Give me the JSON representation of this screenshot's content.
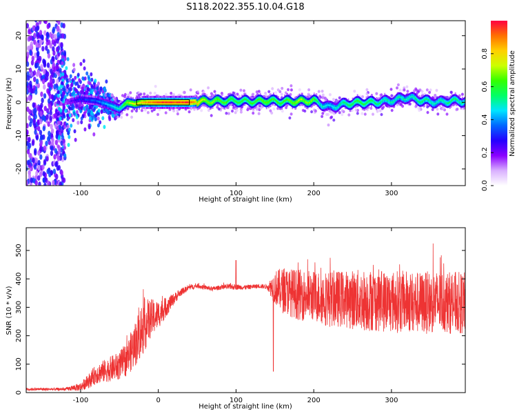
{
  "title": "S118.2022.355.10.04.G18",
  "chart_data": [
    {
      "type": "heatmap",
      "xlabel": "Height of straight line (km)",
      "ylabel": "Frequency (Hz)",
      "xlim": [
        -170,
        395
      ],
      "ylim": [
        -25,
        24.5
      ],
      "xticks": [
        -100,
        0,
        100,
        200,
        300
      ],
      "yticks": [
        -20,
        -10,
        0,
        10,
        20
      ],
      "colorbar": {
        "label": "Normalized spectral amplitude",
        "range": [
          0,
          1
        ],
        "ticks": [
          0.0,
          0.2,
          0.4,
          0.6,
          0.8
        ],
        "colors": [
          "#ffffff",
          "#d9b0ff",
          "#8a00ff",
          "#2400ff",
          "#0066ff",
          "#00e5ff",
          "#00ff66",
          "#33ff00",
          "#ccff00",
          "#ffd000",
          "#ff7000",
          "#ff0040"
        ]
      },
      "ridge": {
        "description_x": [
          -170,
          -120,
          -100,
          -80,
          -60,
          -50,
          -40,
          -30,
          -20,
          -10,
          0,
          40,
          60,
          80,
          100,
          120,
          140,
          160,
          180,
          200,
          210,
          220,
          240,
          260,
          280,
          300,
          320,
          340,
          360,
          380,
          395
        ],
        "freq_hz": [
          0,
          0,
          1,
          0.5,
          -1,
          -2,
          0,
          -0.5,
          0,
          0,
          0,
          0,
          0.3,
          0.4,
          0.5,
          0.2,
          0.5,
          0.2,
          0.3,
          0.5,
          -0.5,
          -1.5,
          -0.5,
          0,
          0,
          0.5,
          1.5,
          0.5,
          0,
          0.5,
          0.3
        ],
        "amplitude": [
          0.12,
          0.15,
          0.3,
          0.35,
          0.45,
          0.5,
          0.7,
          0.75,
          0.85,
          0.9,
          0.95,
          0.95,
          0.7,
          0.65,
          0.6,
          0.6,
          0.65,
          0.6,
          0.7,
          0.65,
          0.5,
          0.45,
          0.55,
          0.6,
          0.55,
          0.5,
          0.5,
          0.55,
          0.5,
          0.55,
          0.5
        ]
      }
    },
    {
      "type": "line",
      "xlabel": "Height of straight line (km)",
      "ylabel": "SNR (10 * v/v)",
      "xlim": [
        -170,
        395
      ],
      "ylim": [
        0,
        580
      ],
      "xticks": [
        -100,
        0,
        100,
        200,
        300
      ],
      "yticks": [
        0,
        100,
        200,
        300,
        400,
        500
      ],
      "series": [
        {
          "color": "#ee3333",
          "x": [
            -170,
            -120,
            -100,
            -90,
            -80,
            -70,
            -60,
            -50,
            -40,
            -30,
            -20,
            -10,
            0,
            10,
            20,
            30,
            40,
            50,
            60,
            70,
            80,
            90,
            100,
            110,
            120,
            130,
            140,
            150,
            160,
            180,
            200,
            220,
            240,
            260,
            280,
            300,
            320,
            340,
            360,
            380,
            395
          ],
          "mean": [
            12,
            12,
            20,
            40,
            65,
            75,
            85,
            95,
            120,
            170,
            230,
            260,
            275,
            300,
            330,
            355,
            370,
            375,
            370,
            365,
            370,
            372,
            372,
            370,
            372,
            375,
            372,
            370,
            360,
            345,
            340,
            330,
            330,
            325,
            325,
            320,
            320,
            315,
            320,
            315,
            315
          ],
          "spread": [
            5,
            5,
            15,
            25,
            35,
            40,
            45,
            50,
            60,
            80,
            100,
            70,
            50,
            35,
            20,
            12,
            10,
            8,
            8,
            8,
            8,
            10,
            10,
            8,
            8,
            8,
            8,
            60,
            80,
            90,
            90,
            100,
            100,
            110,
            110,
            110,
            110,
            110,
            110,
            110,
            110
          ]
        }
      ]
    }
  ]
}
